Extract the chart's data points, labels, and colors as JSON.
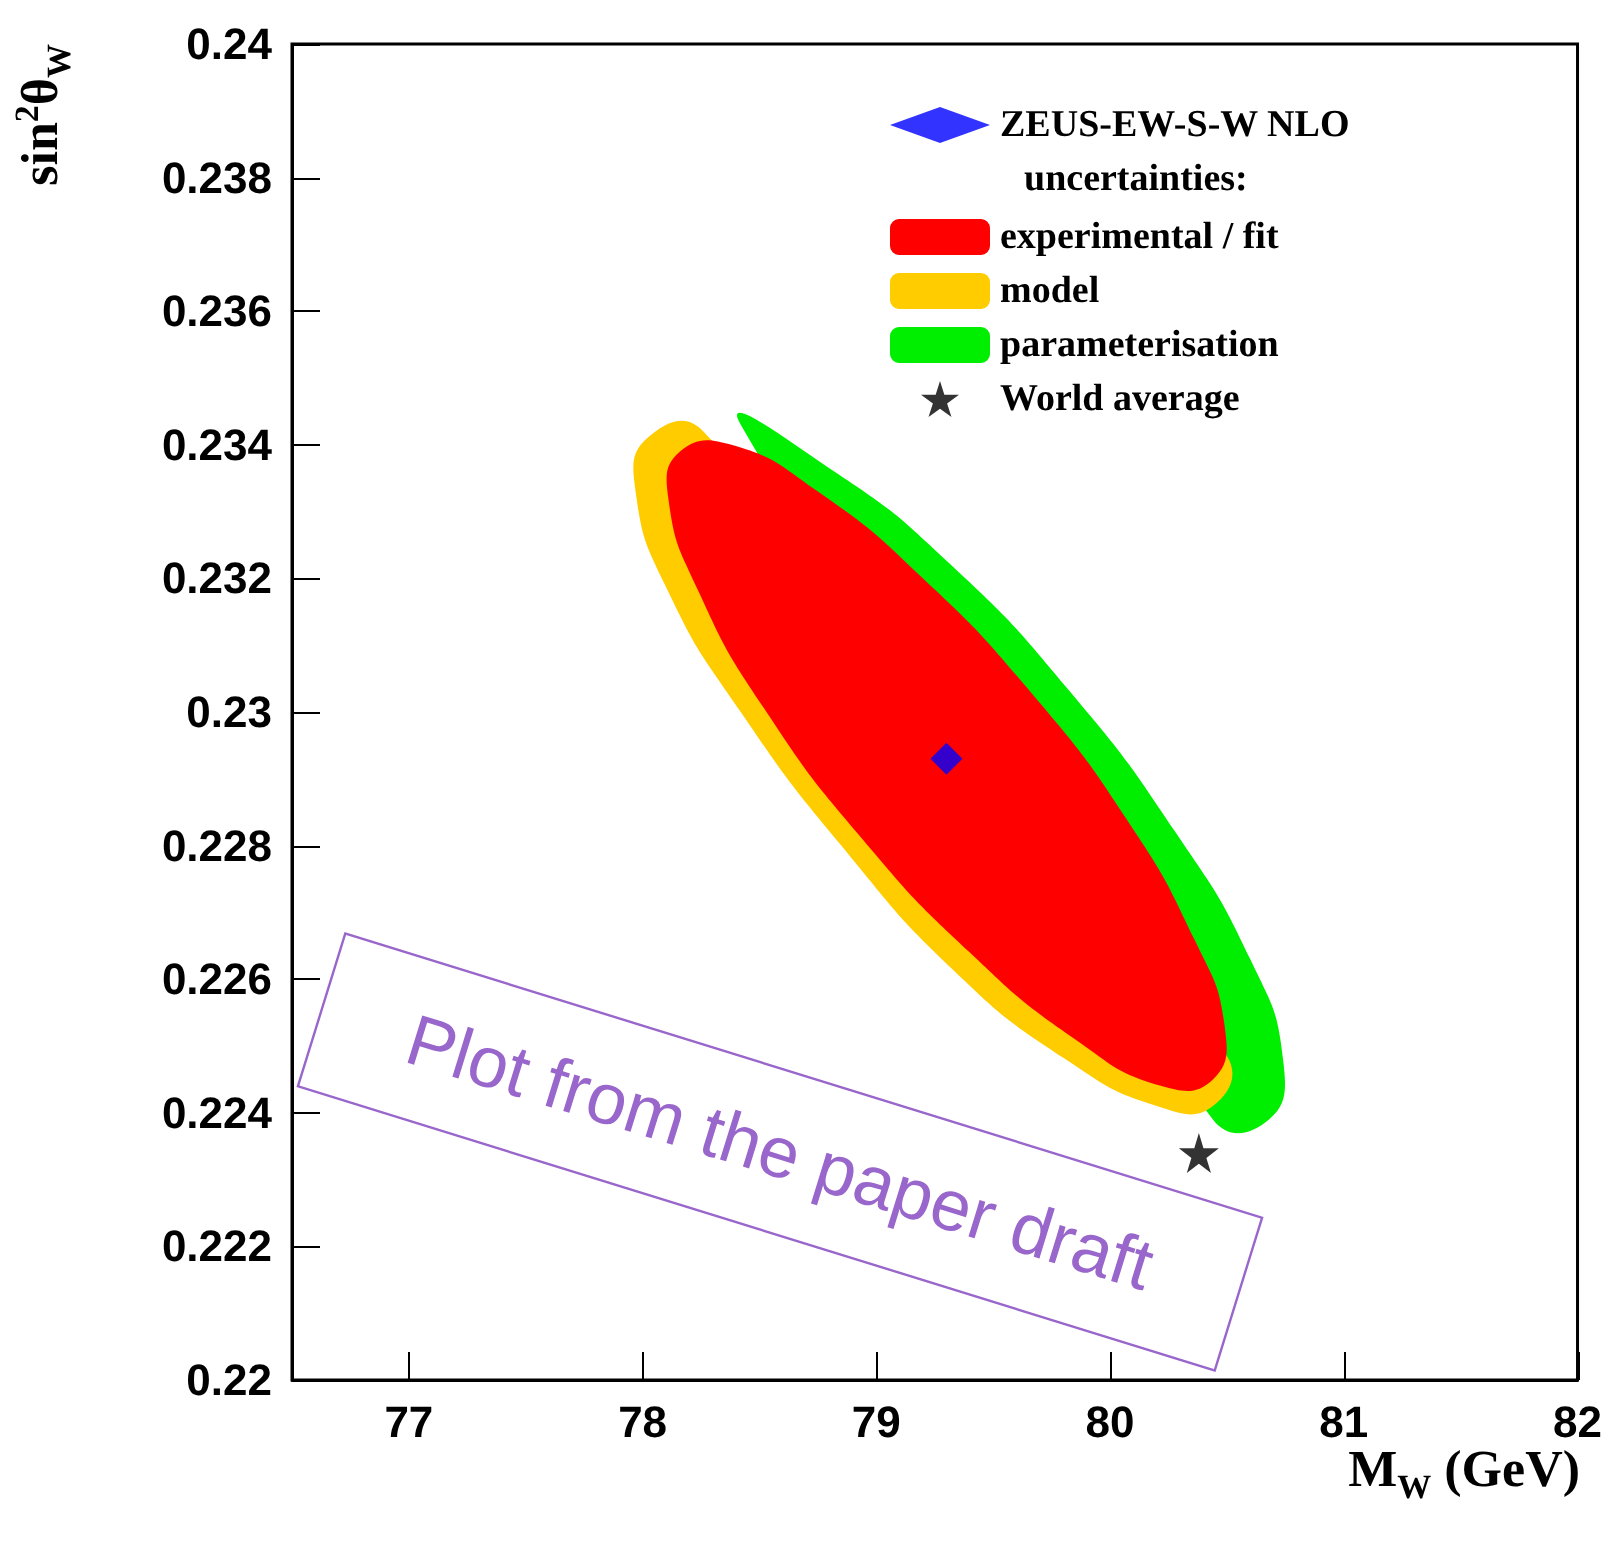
{
  "chart_data": {
    "type": "area",
    "xlabel": "M$_{W}$ (GeV)",
    "ylabel": "sin$^{2}$θ$_{W}$",
    "legend_title": "uncertainties:",
    "legend": "top right",
    "grid": false,
    "xlim": [
      76.5,
      82
    ],
    "xticks": [
      77,
      78,
      79,
      80,
      81,
      82
    ],
    "ylim": [
      0.22,
      0.24
    ],
    "yticks": [
      0.22,
      0.222,
      0.224,
      0.226,
      0.228,
      0.23,
      0.232,
      0.234,
      0.236,
      0.238,
      0.24
    ],
    "annotations": [
      "Plot from the paper draft"
    ],
    "series": [
      {
        "name": "ZEUS-EW-S-W NLO",
        "type": "scatter",
        "marker": "diamond",
        "color": "#0000ff",
        "x": [
          79.3
        ],
        "values": [
          0.2293
        ]
      },
      {
        "name": "experimental / fit",
        "color": "#ff0000",
        "x": [
          80.44,
          80.49,
          80.36,
          80.07,
          79.66,
          79.2,
          78.75,
          78.38,
          78.16,
          78.11,
          78.24,
          78.53,
          78.94,
          79.4,
          79.85,
          80.22
        ],
        "values": [
          0.2245,
          0.2253,
          0.2266,
          0.2284,
          0.2303,
          0.232,
          0.2333,
          0.234,
          0.2339,
          0.2332,
          0.2318,
          0.23,
          0.2281,
          0.2264,
          0.2251,
          0.2244
        ]
      },
      {
        "name": "model",
        "color": "#ffcc00",
        "x": [
          80.44,
          80.49,
          null,
          null,
          null,
          null,
          null,
          78.26,
          78.02,
          77.97,
          78.11,
          78.42,
          78.85,
          79.34,
          79.81,
          80.2
        ],
        "values": [
          0.2241,
          0.2249,
          null,
          null,
          null,
          null,
          null,
          0.2342,
          0.2341,
          0.2333,
          0.2318,
          0.23,
          0.228,
          0.2261,
          0.2248,
          0.2241
        ]
      },
      {
        "name": "parameterisation",
        "color": "#00ee00",
        "x": [
          80.68,
          80.74,
          80.6,
          80.28,
          79.83,
          79.32,
          78.82,
          78.42,
          null,
          null,
          null,
          null,
          null,
          null,
          null,
          80.44
        ],
        "values": [
          0.2239,
          0.2248,
          0.2263,
          0.2282,
          0.2303,
          0.2322,
          0.2336,
          0.2343,
          null,
          null,
          null,
          null,
          null,
          null,
          null,
          0.2239
        ]
      },
      {
        "name": "World average",
        "type": "scatter",
        "marker": "star",
        "color": "#000000",
        "x": [
          80.38
        ],
        "values": [
          0.2234
        ]
      }
    ]
  }
}
